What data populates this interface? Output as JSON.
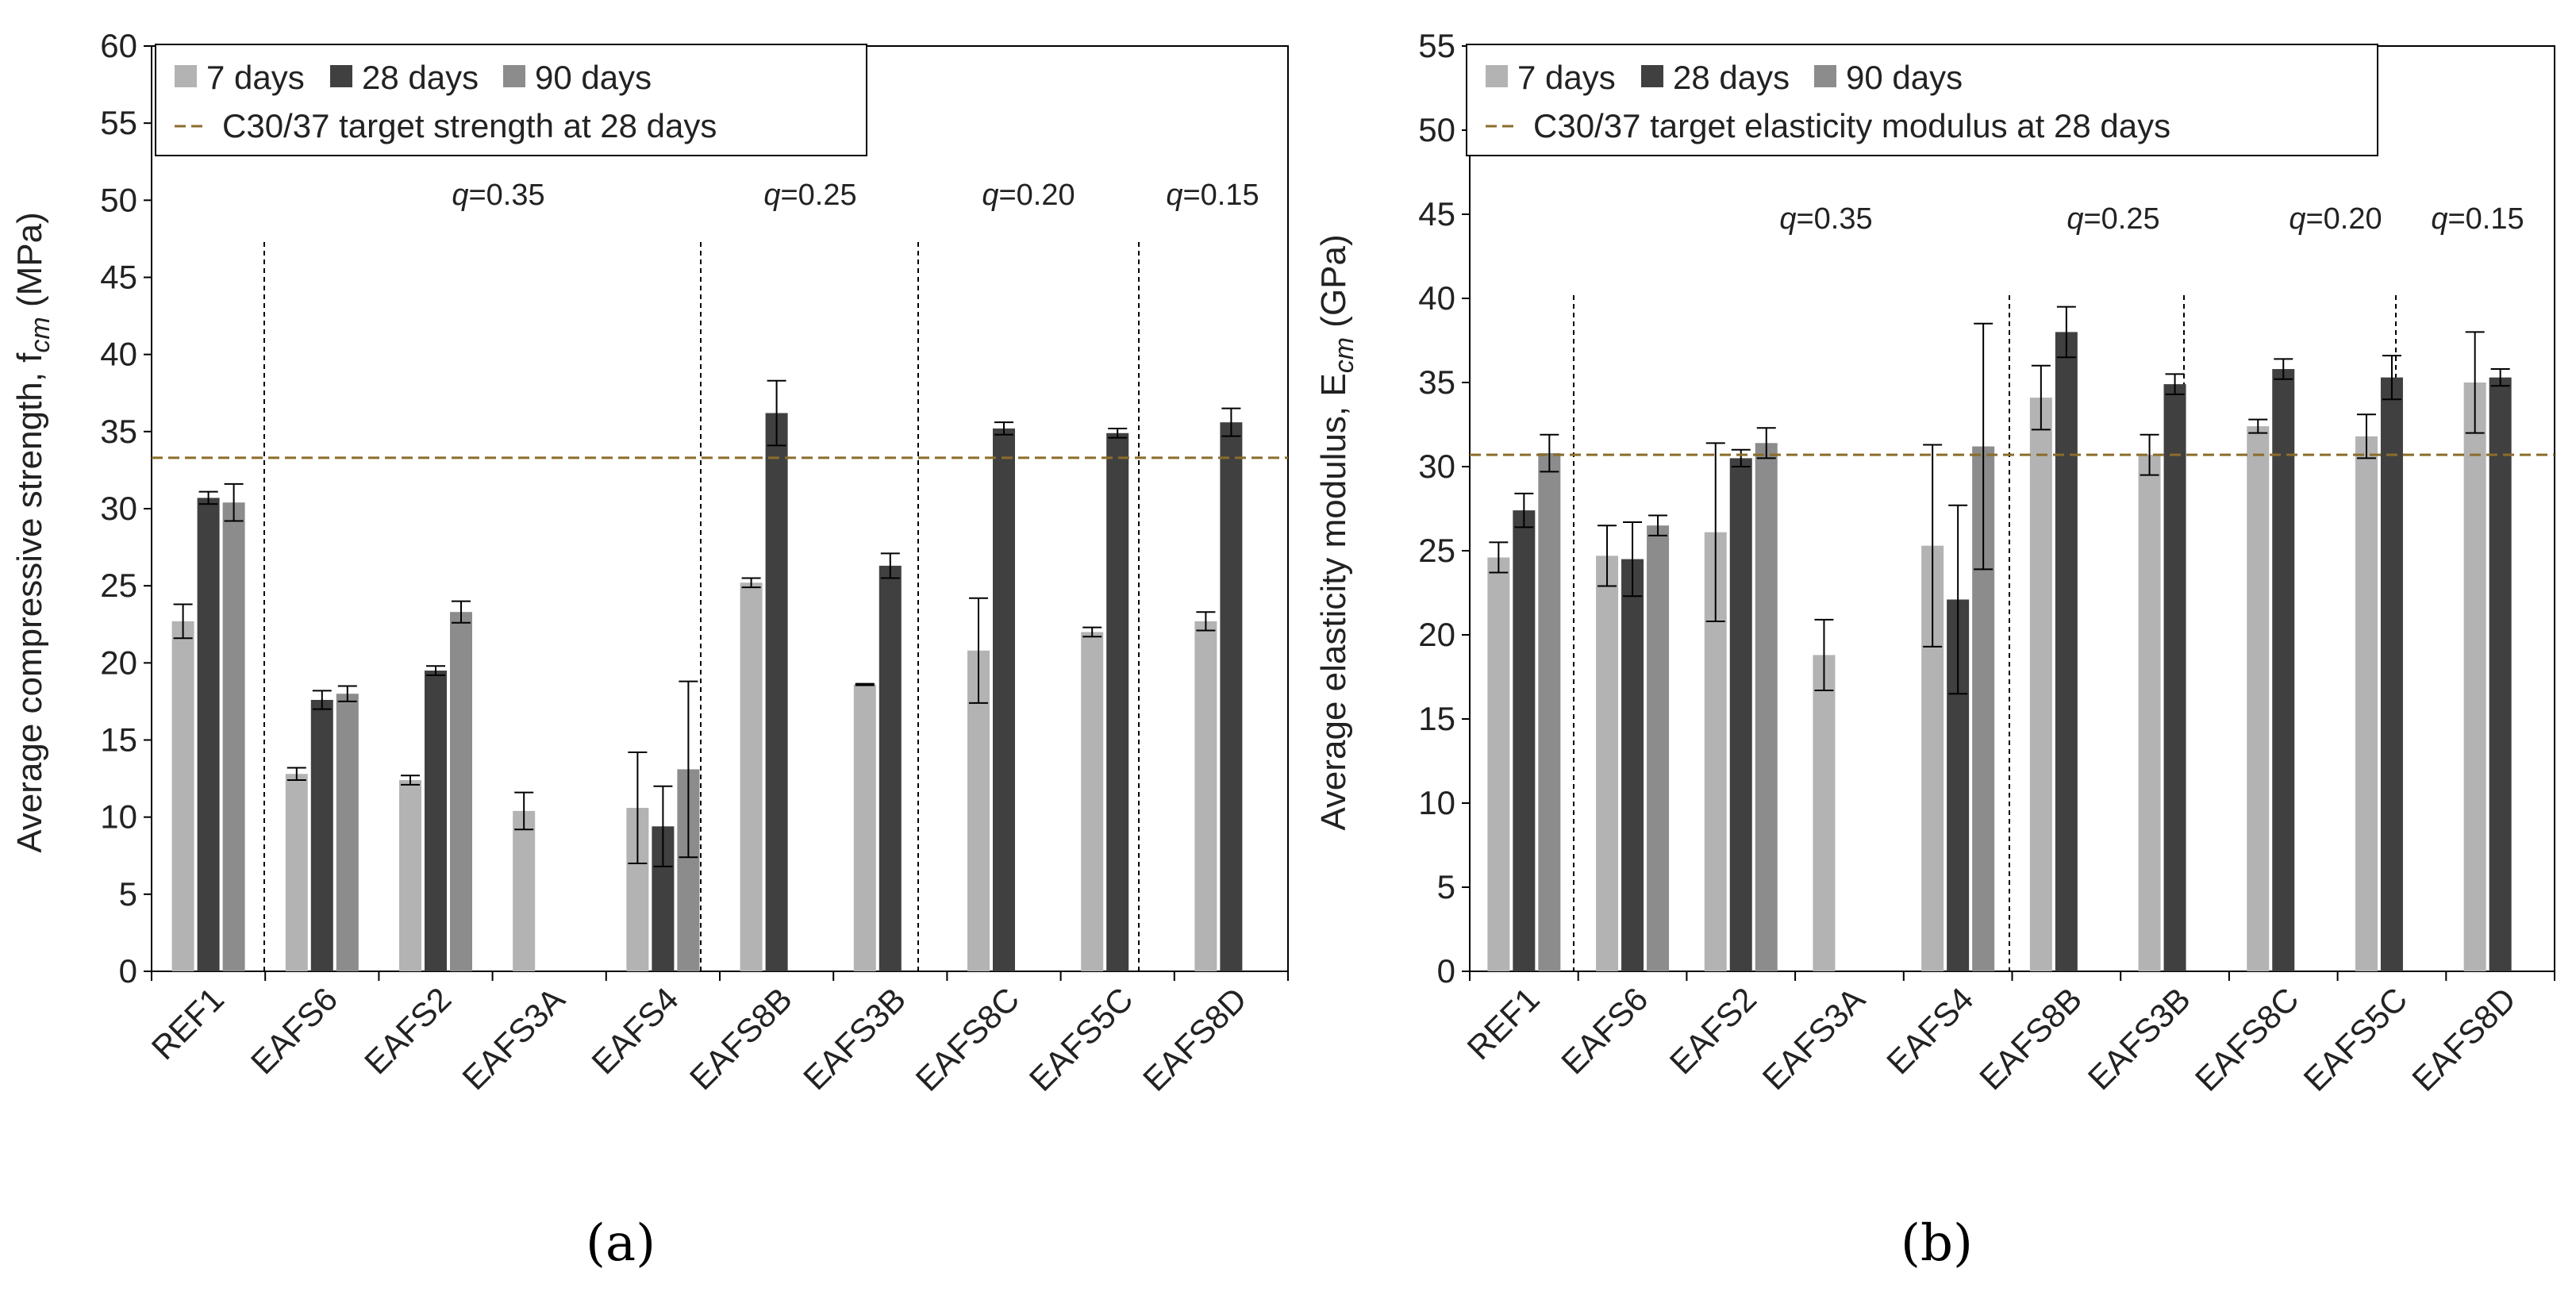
{
  "chart_data": [
    {
      "type": "bar",
      "panel_label": "(a)",
      "ylabel": "Average compressive strength, f",
      "ylabel_sub": "cm",
      "ylabel_unit": " (MPa)",
      "ylim": [
        0,
        60
      ],
      "ytick_step": 5,
      "ytick_labels": [
        "0",
        "5",
        "10",
        "15",
        "20",
        "25",
        "30",
        "35",
        "40",
        "45",
        "50",
        "55",
        "60"
      ],
      "categories": [
        "REF1",
        "EAFS6",
        "EAFS2",
        "EAFS3A",
        "EAFS4",
        "EAFS8B",
        "EAFS3B",
        "EAFS8C",
        "EAFS5C",
        "EAFS8D"
      ],
      "series": [
        {
          "name": "7 days",
          "color": "#b3b3b3",
          "values": [
            22.7,
            12.8,
            12.4,
            10.4,
            10.6,
            25.2,
            18.6,
            20.8,
            22.0,
            22.7
          ],
          "errors": [
            1.1,
            0.4,
            0.3,
            1.2,
            3.6,
            0.3,
            0.05,
            3.4,
            0.3,
            0.6
          ]
        },
        {
          "name": "28 days",
          "color": "#404040",
          "values": [
            30.7,
            17.6,
            19.5,
            null,
            9.4,
            36.2,
            26.3,
            35.2,
            34.9,
            35.6
          ],
          "errors": [
            0.4,
            0.6,
            0.3,
            null,
            2.6,
            2.1,
            0.8,
            0.4,
            0.3,
            0.9
          ]
        },
        {
          "name": "90 days",
          "color": "#8c8c8c",
          "values": [
            30.4,
            18.0,
            23.3,
            null,
            13.1,
            null,
            null,
            null,
            null,
            null
          ],
          "errors": [
            1.2,
            0.5,
            0.7,
            null,
            5.7,
            null,
            null,
            null,
            null,
            null
          ]
        }
      ],
      "target_line": {
        "label": "C30/37 target strength at 28 days",
        "value": 33.3,
        "color": "#8a6d2b"
      },
      "group_labels": [
        {
          "prefix": "q",
          "text": "=0.35"
        },
        {
          "prefix": "q",
          "text": "=0.25"
        },
        {
          "prefix": "q",
          "text": "=0.20"
        },
        {
          "prefix": "q",
          "text": "=0.15"
        }
      ],
      "legend_position": "top-left"
    },
    {
      "type": "bar",
      "panel_label": "(b)",
      "ylabel": "Average elasticity modulus, E",
      "ylabel_sub": "cm",
      "ylabel_unit": " (GPa)",
      "ylim": [
        0,
        55
      ],
      "ytick_step": 5,
      "ytick_labels": [
        "0",
        "5",
        "10",
        "15",
        "20",
        "25",
        "30",
        "35",
        "40",
        "45",
        "50",
        "55"
      ],
      "categories": [
        "REF1",
        "EAFS6",
        "EAFS2",
        "EAFS3A",
        "EAFS4",
        "EAFS8B",
        "EAFS3B",
        "EAFS8C",
        "EAFS5C",
        "EAFS8D"
      ],
      "series": [
        {
          "name": "7 days",
          "color": "#b3b3b3",
          "values": [
            24.6,
            24.7,
            26.1,
            18.8,
            25.3,
            34.1,
            30.7,
            32.4,
            31.8,
            35.0
          ],
          "errors": [
            0.9,
            1.8,
            5.3,
            2.1,
            6.0,
            1.9,
            1.2,
            0.4,
            1.3,
            3.0
          ]
        },
        {
          "name": "28 days",
          "color": "#404040",
          "values": [
            27.4,
            24.5,
            30.5,
            null,
            22.1,
            38.0,
            34.9,
            35.8,
            35.3,
            35.3
          ],
          "errors": [
            1.0,
            2.2,
            0.5,
            null,
            5.6,
            1.5,
            0.6,
            0.6,
            1.3,
            0.5
          ]
        },
        {
          "name": "90 days",
          "color": "#8c8c8c",
          "values": [
            30.8,
            26.5,
            31.4,
            null,
            31.2,
            null,
            null,
            null,
            null,
            null
          ],
          "errors": [
            1.1,
            0.6,
            0.9,
            null,
            7.3,
            null,
            null,
            null,
            null,
            null
          ]
        }
      ],
      "target_line": {
        "label": "C30/37 target elasticity modulus at 28 days",
        "value": 30.7,
        "color": "#8a6d2b"
      },
      "group_labels": [
        {
          "prefix": "q",
          "text": "=0.35"
        },
        {
          "prefix": "q",
          "text": "=0.25"
        },
        {
          "prefix": "q",
          "text": "=0.20"
        },
        {
          "prefix": "q",
          "text": "=0.15"
        }
      ],
      "legend_position": "top-left"
    }
  ]
}
